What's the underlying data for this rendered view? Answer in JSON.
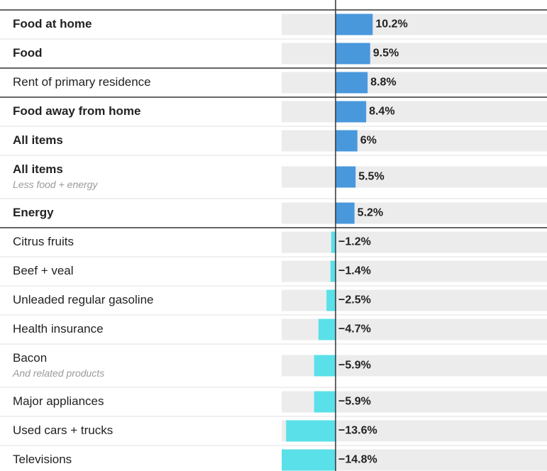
{
  "chart_data": {
    "type": "bar",
    "categories": [
      "Food at home",
      "Food",
      "Rent of primary residence",
      "Food away from home",
      "All items",
      "All items",
      "Energy",
      "Citrus fruits",
      "Beef + veal",
      "Unleaded regular gasoline",
      "Health insurance",
      "Bacon",
      "Major appliances",
      "Used cars + trucks",
      "Televisions"
    ],
    "subtitles": [
      null,
      null,
      null,
      null,
      null,
      "Less food + energy",
      null,
      null,
      null,
      null,
      null,
      "And related products",
      null,
      null,
      null
    ],
    "values": [
      10.2,
      9.5,
      8.8,
      8.4,
      6,
      5.5,
      5.2,
      -1.2,
      -1.4,
      -2.5,
      -4.7,
      -5.9,
      -5.9,
      -13.6,
      -14.8
    ],
    "value_labels": [
      "10.2%",
      "9.5%",
      "8.8%",
      "8.4%",
      "6%",
      "5.5%",
      "5.2%",
      "−1.2%",
      "−1.4%",
      "−2.5%",
      "−4.7%",
      "−5.9%",
      "−5.9%",
      "−13.6%",
      "−14.8%"
    ],
    "color": "#4a98dc",
    "negative_color": "#5ae0e8"
  }
}
